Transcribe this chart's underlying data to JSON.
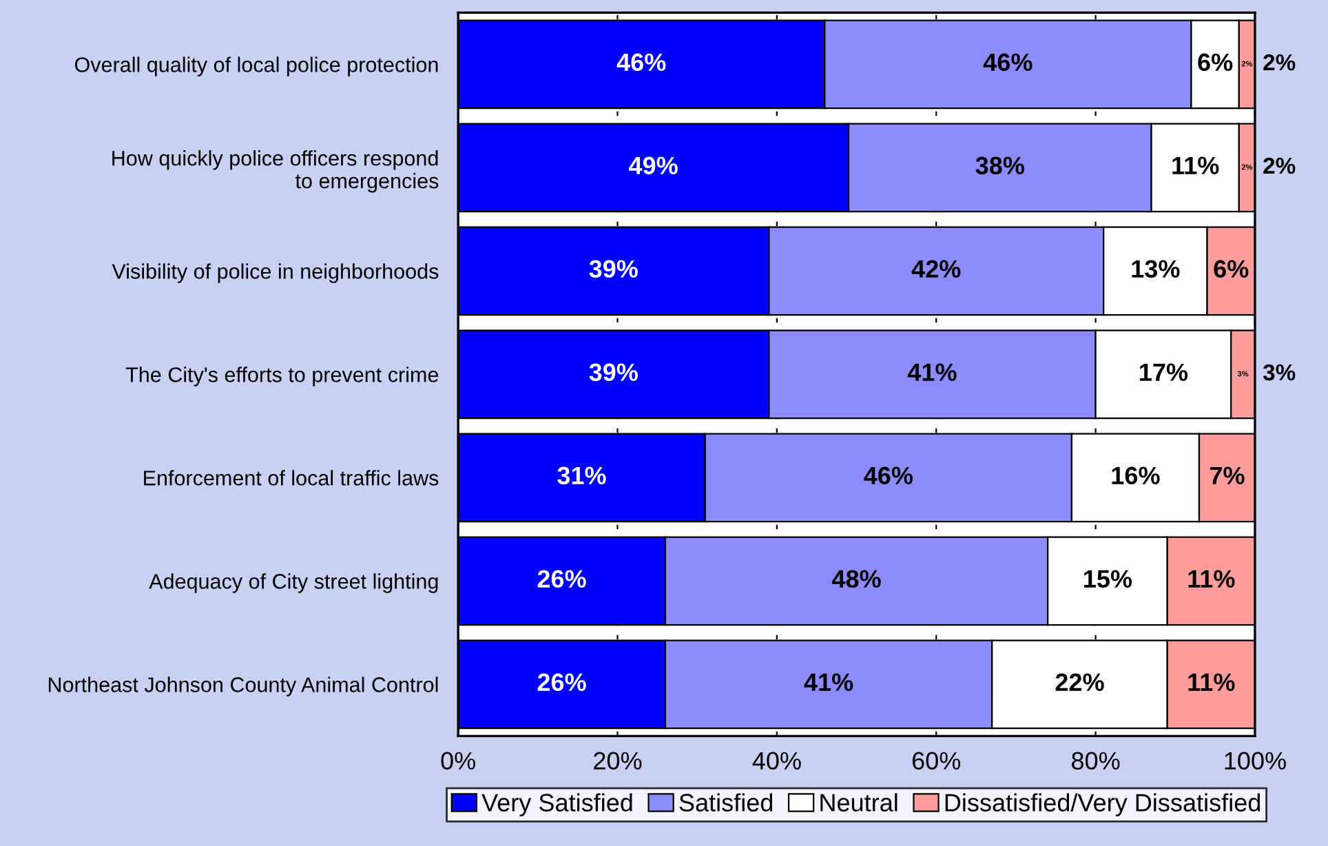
{
  "chart_data": {
    "type": "bar",
    "orientation": "horizontal",
    "stacked": true,
    "categories": [
      "Overall quality of local police protection",
      "How quickly police officers respond\nto emergencies",
      "Visibility of police in neighborhoods",
      "The City's efforts to prevent crime",
      "Enforcement of local traffic laws",
      "Adequacy of City street lighting",
      "Northeast Johnson County Animal Control"
    ],
    "series": [
      {
        "name": "Very Satisfied",
        "color": "#0000ff",
        "values": [
          46,
          49,
          39,
          39,
          31,
          26,
          26
        ],
        "value_labels": [
          "46%",
          "49%",
          "39%",
          "39%",
          "31%",
          "26%",
          "26%"
        ]
      },
      {
        "name": "Satisfied",
        "color": "#8c8cff",
        "values": [
          46,
          38,
          42,
          41,
          46,
          48,
          41
        ],
        "value_labels": [
          "46%",
          "38%",
          "42%",
          "41%",
          "46%",
          "48%",
          "41%"
        ]
      },
      {
        "name": "Neutral",
        "color": "#ffffff",
        "values": [
          6,
          11,
          13,
          17,
          16,
          15,
          22
        ],
        "value_labels": [
          "6%",
          "11%",
          "13%",
          "17%",
          "16%",
          "15%",
          "22%"
        ]
      },
      {
        "name": "Dissatisfied/Very Dissatisfied",
        "color": "#ff9c9c",
        "values": [
          2,
          2,
          6,
          3,
          7,
          11,
          11
        ],
        "value_labels": [
          "2%",
          "2%",
          "6%",
          "3%",
          "7%",
          "11%",
          "11%"
        ]
      }
    ],
    "xlim": [
      0,
      100
    ],
    "xticks": [
      {
        "value": 0,
        "label": "0%"
      },
      {
        "value": 20,
        "label": "20%"
      },
      {
        "value": 40,
        "label": "40%"
      },
      {
        "value": 60,
        "label": "60%"
      },
      {
        "value": 80,
        "label": "80%"
      },
      {
        "value": 100,
        "label": "100%"
      }
    ],
    "grid": "x",
    "legend": "bottom"
  }
}
